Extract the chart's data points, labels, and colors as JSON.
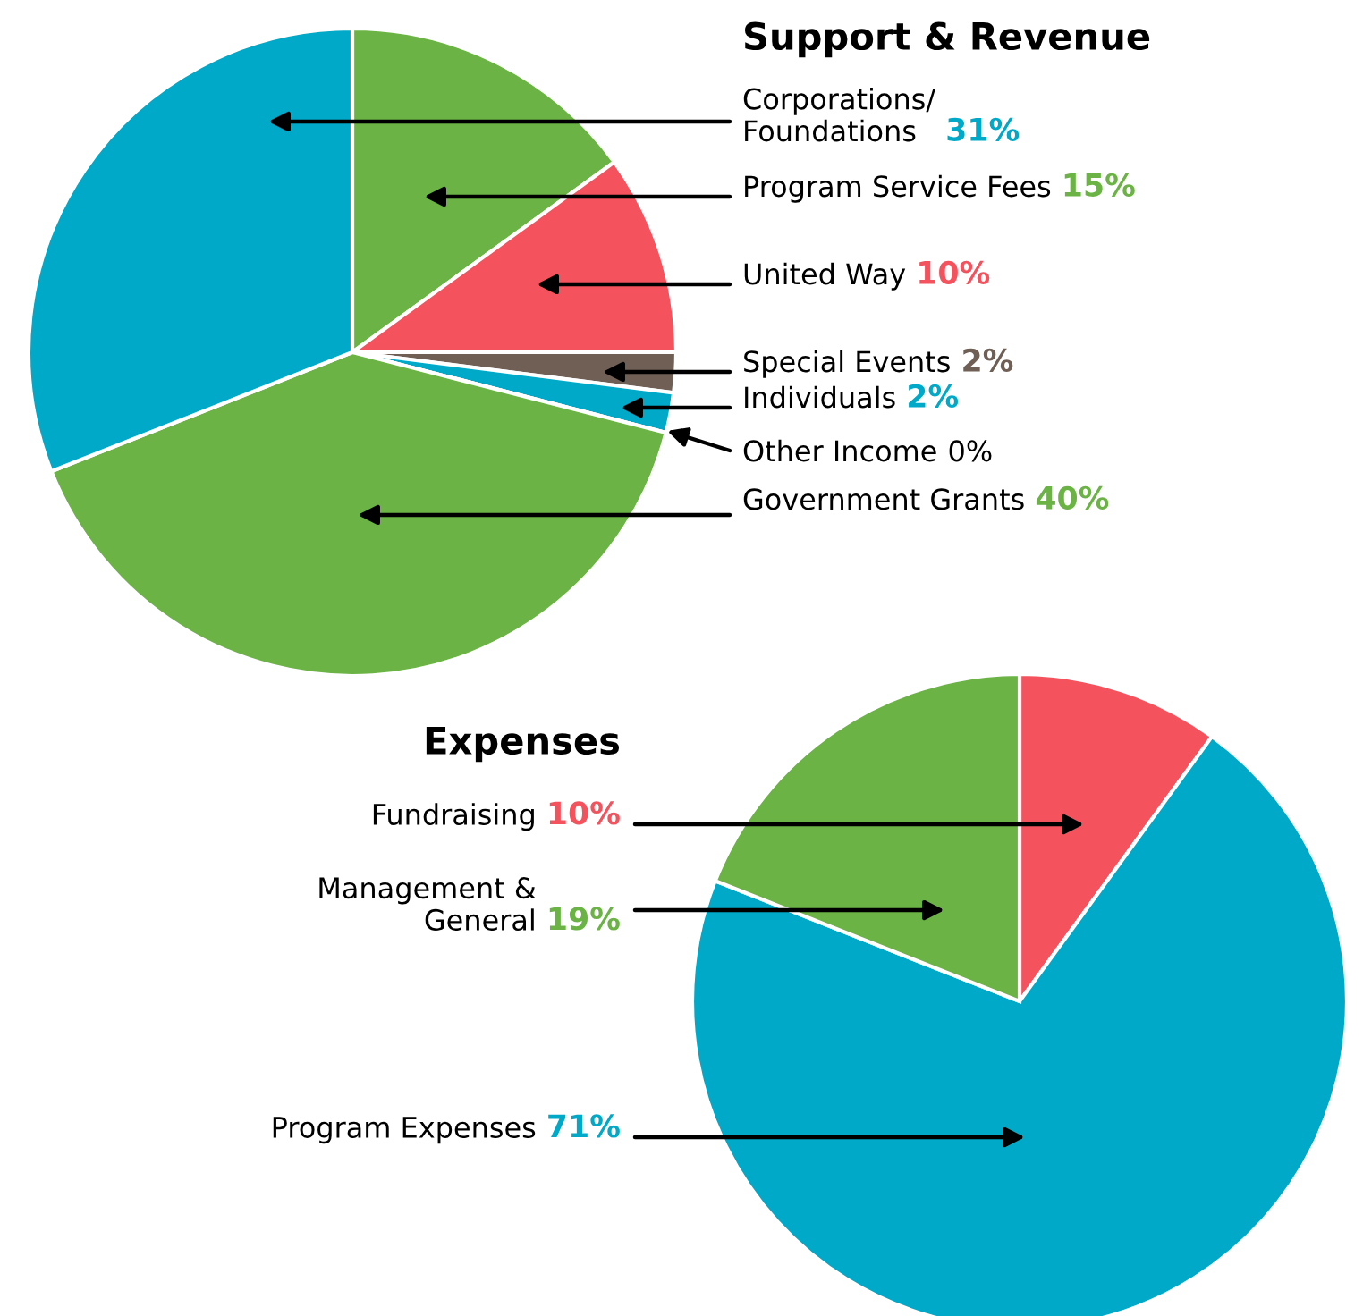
{
  "chart_data": [
    {
      "type": "pie",
      "title": "Support & Revenue",
      "categories": [
        "Program Service Fees",
        "United Way",
        "Special Events",
        "Individuals",
        "Other Income",
        "Government Grants",
        "Corporations/\nFoundations"
      ],
      "values": [
        15,
        10,
        2,
        2,
        0,
        40,
        31
      ],
      "value_labels": [
        "15%",
        "10%",
        "2%",
        "2%",
        "0%",
        "40%",
        "31%"
      ],
      "colors": [
        "#6ab344",
        "#f4525c",
        "#6f5f55",
        "#00a9c7",
        "#000000",
        "#6ab344",
        "#00a9c7"
      ]
    },
    {
      "type": "pie",
      "title": "Expenses",
      "categories": [
        "Fundraising",
        "Program Expenses",
        "Management &\nGeneral"
      ],
      "values": [
        10,
        71,
        19
      ],
      "value_labels": [
        "10%",
        "71%",
        "19%"
      ],
      "colors": [
        "#f4525c",
        "#00a9c7",
        "#6ab344"
      ]
    }
  ]
}
